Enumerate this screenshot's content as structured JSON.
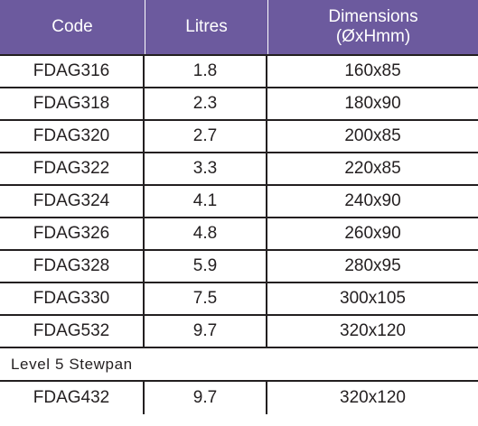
{
  "table": {
    "headers": {
      "code": "Code",
      "litres": "Litres",
      "dimensions_line1": "Dimensions",
      "dimensions_line2": "(ØxHmm)"
    },
    "rows": [
      {
        "code": "FDAG316",
        "litres": "1.8",
        "dimensions": "160x85"
      },
      {
        "code": "FDAG318",
        "litres": "2.3",
        "dimensions": "180x90"
      },
      {
        "code": "FDAG320",
        "litres": "2.7",
        "dimensions": "200x85"
      },
      {
        "code": "FDAG322",
        "litres": "3.3",
        "dimensions": "220x85"
      },
      {
        "code": "FDAG324",
        "litres": "4.1",
        "dimensions": "240x90"
      },
      {
        "code": "FDAG326",
        "litres": "4.8",
        "dimensions": "260x90"
      },
      {
        "code": "FDAG328",
        "litres": "5.9",
        "dimensions": "280x95"
      },
      {
        "code": "FDAG330",
        "litres": "7.5",
        "dimensions": "300x105"
      },
      {
        "code": "FDAG532",
        "litres": "9.7",
        "dimensions": "320x120"
      }
    ],
    "section_title": "Level 5 Stewpan",
    "section_rows": [
      {
        "code": "FDAG432",
        "litres": "9.7",
        "dimensions": "320x120"
      }
    ]
  },
  "colors": {
    "header_bg": "#6c5a9e",
    "header_text": "#ffffff",
    "text": "#231f20"
  }
}
